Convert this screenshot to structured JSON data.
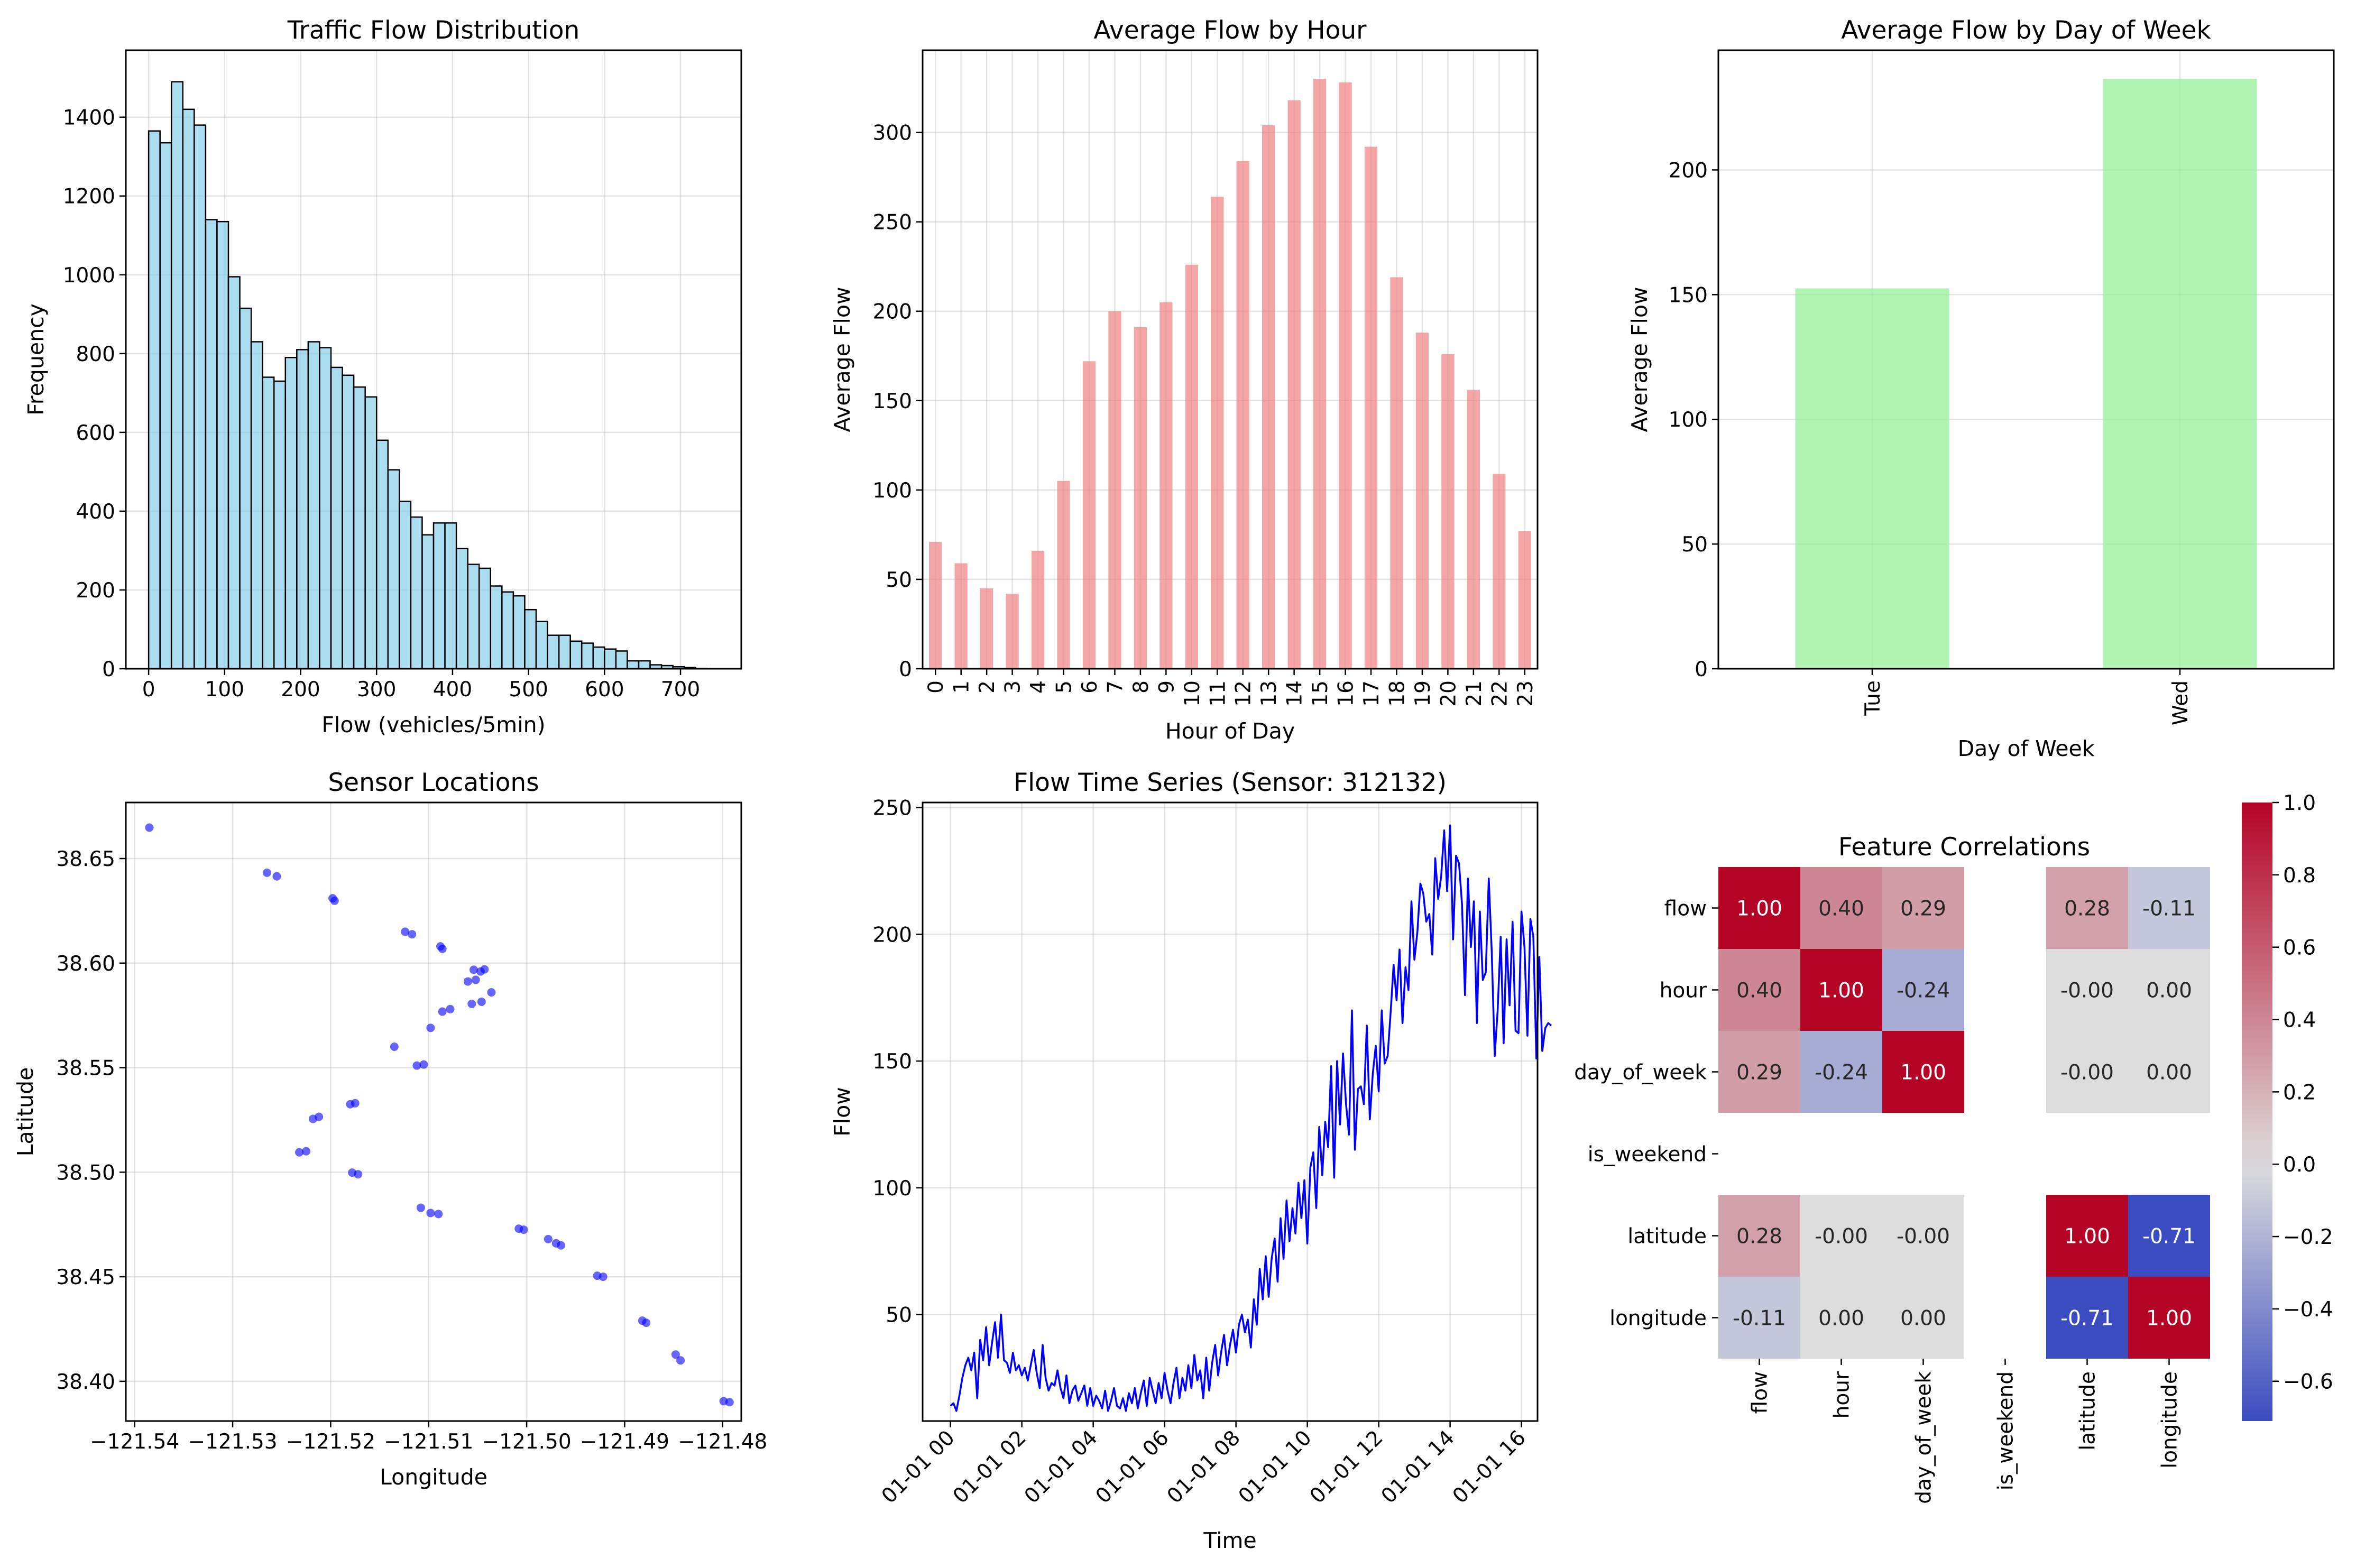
{
  "colors": {
    "hist_fill": "#87ceeb",
    "hist_edge": "#000000",
    "hour_bar": "#f08080",
    "dow_bar": "#90ee90",
    "scatter": "#0000ff",
    "line": "#0000ff",
    "cmap": "coolwarm"
  },
  "chart_data": [
    {
      "type": "bar",
      "subtype": "histogram",
      "title": "Traffic Flow Distribution",
      "xlabel": "Flow (vehicles/5min)",
      "ylabel": "Frequency",
      "xlim": [
        -30,
        780
      ],
      "ylim": [
        0,
        1570
      ],
      "grid": true,
      "xticks": [
        0,
        100,
        200,
        300,
        400,
        500,
        600,
        700
      ],
      "yticks": [
        0,
        200,
        400,
        600,
        800,
        1000,
        1200,
        1400
      ],
      "bin_start": 0,
      "bin_width": 15,
      "values": [
        1365,
        1335,
        1490,
        1420,
        1380,
        1140,
        1135,
        995,
        915,
        830,
        740,
        730,
        790,
        810,
        830,
        815,
        765,
        745,
        715,
        690,
        580,
        505,
        425,
        385,
        340,
        370,
        370,
        305,
        265,
        255,
        210,
        195,
        185,
        150,
        120,
        85,
        85,
        70,
        65,
        55,
        50,
        45,
        20,
        20,
        10,
        8,
        5,
        3,
        1
      ]
    },
    {
      "type": "bar",
      "title": "Average Flow by Hour",
      "xlabel": "Hour of Day",
      "ylabel": "Average Flow",
      "ylim": [
        0,
        346
      ],
      "grid": true,
      "yticks": [
        0,
        50,
        100,
        150,
        200,
        250,
        300
      ],
      "categories": [
        "0",
        "1",
        "2",
        "3",
        "4",
        "5",
        "6",
        "7",
        "8",
        "9",
        "10",
        "11",
        "12",
        "13",
        "14",
        "15",
        "16",
        "17",
        "18",
        "19",
        "20",
        "21",
        "22",
        "23"
      ],
      "values": [
        71,
        59,
        45,
        42,
        66,
        105,
        172,
        200,
        191,
        205,
        226,
        264,
        284,
        304,
        318,
        330,
        328,
        292,
        219,
        188,
        176,
        156,
        109,
        77
      ]
    },
    {
      "type": "bar",
      "title": "Average Flow by Day of Week",
      "xlabel": "Day of Week",
      "ylabel": "Average Flow",
      "ylim": [
        0,
        248
      ],
      "grid": true,
      "yticks": [
        0,
        50,
        100,
        150,
        200
      ],
      "categories": [
        "Tue",
        "Wed"
      ],
      "values": [
        152.5,
        236.5
      ]
    },
    {
      "type": "scatter",
      "title": "Sensor Locations",
      "xlabel": "Longitude",
      "ylabel": "Latitude",
      "xlim": [
        -121.5409,
        -121.4781
      ],
      "ylim": [
        38.381,
        38.6768
      ],
      "grid": true,
      "xticks": [
        -121.54,
        -121.53,
        -121.52,
        -121.51,
        -121.5,
        -121.49,
        -121.48
      ],
      "xtick_labels": [
        "−121.54",
        "−121.53",
        "−121.52",
        "−121.51",
        "−121.50",
        "−121.49",
        "−121.48"
      ],
      "yticks": [
        38.4,
        38.45,
        38.5,
        38.55,
        38.6,
        38.65
      ],
      "ytick_labels": [
        "38.40",
        "38.45",
        "38.50",
        "38.55",
        "38.60",
        "38.65"
      ],
      "points": [
        [
          -121.5385,
          38.6648
        ],
        [
          -121.5265,
          38.6432
        ],
        [
          -121.5255,
          38.6415
        ],
        [
          -121.5198,
          38.631
        ],
        [
          -121.5196,
          38.6298
        ],
        [
          -121.5124,
          38.615
        ],
        [
          -121.5117,
          38.6138
        ],
        [
          -121.5088,
          38.608
        ],
        [
          -121.5086,
          38.6068
        ],
        [
          -121.5054,
          38.5968
        ],
        [
          -121.5047,
          38.596
        ],
        [
          -121.5043,
          38.597
        ],
        [
          -121.5052,
          38.592
        ],
        [
          -121.506,
          38.5912
        ],
        [
          -121.5036,
          38.586
        ],
        [
          -121.5046,
          38.5815
        ],
        [
          -121.5056,
          38.5805
        ],
        [
          -121.5078,
          38.578
        ],
        [
          -121.5086,
          38.5768
        ],
        [
          -121.5098,
          38.569
        ],
        [
          -121.5135,
          38.56
        ],
        [
          -121.5105,
          38.5515
        ],
        [
          -121.5112,
          38.551
        ],
        [
          -121.5175,
          38.533
        ],
        [
          -121.518,
          38.5325
        ],
        [
          -121.5212,
          38.5265
        ],
        [
          -121.5218,
          38.5255
        ],
        [
          -121.5225,
          38.51
        ],
        [
          -121.5232,
          38.5095
        ],
        [
          -121.5178,
          38.4998
        ],
        [
          -121.5172,
          38.499
        ],
        [
          -121.5108,
          38.483
        ],
        [
          -121.5098,
          38.4805
        ],
        [
          -121.509,
          38.48
        ],
        [
          -121.5008,
          38.473
        ],
        [
          -121.5003,
          38.4725
        ],
        [
          -121.4978,
          38.468
        ],
        [
          -121.497,
          38.466
        ],
        [
          -121.4965,
          38.465
        ],
        [
          -121.4928,
          38.4505
        ],
        [
          -121.4922,
          38.45
        ],
        [
          -121.4882,
          38.429
        ],
        [
          -121.4878,
          38.428
        ],
        [
          -121.4848,
          38.4128
        ],
        [
          -121.4843,
          38.41
        ],
        [
          -121.4799,
          38.3905
        ],
        [
          -121.4793,
          38.39
        ]
      ]
    },
    {
      "type": "line",
      "title": "Flow Time Series (Sensor: 312132)",
      "xlabel": "Time",
      "ylabel": "Flow",
      "x_start": "01-01 00:00",
      "x_step_minutes": 5,
      "xlim_hours": [
        -0.78,
        16.45
      ],
      "ylim": [
        8,
        252
      ],
      "grid": true,
      "xtick_labels": [
        "01-01 00",
        "01-01 02",
        "01-01 04",
        "01-01 06",
        "01-01 08",
        "01-01 10",
        "01-01 12",
        "01-01 14",
        "01-01 16"
      ],
      "yticks": [
        50,
        100,
        150,
        200,
        250
      ],
      "values": [
        14,
        15,
        12,
        18,
        25,
        30,
        33,
        28,
        35,
        17,
        40,
        32,
        45,
        30,
        39,
        47,
        33,
        50,
        32,
        31,
        27,
        35,
        28,
        30,
        26,
        29,
        24,
        30,
        36,
        27,
        21,
        38,
        25,
        20,
        23,
        22,
        28,
        21,
        17,
        26,
        15,
        20,
        22,
        16,
        19,
        22,
        14,
        21,
        14,
        18,
        16,
        13,
        20,
        12,
        16,
        21,
        14,
        13,
        17,
        12,
        19,
        15,
        21,
        13,
        19,
        24,
        14,
        25,
        20,
        15,
        23,
        17,
        27,
        20,
        15,
        23,
        29,
        17,
        25,
        20,
        30,
        21,
        34,
        24,
        28,
        17,
        33,
        20,
        31,
        38,
        26,
        35,
        42,
        30,
        38,
        44,
        35,
        46,
        50,
        43,
        48,
        37,
        56,
        46,
        68,
        56,
        73,
        57,
        72,
        80,
        63,
        88,
        72,
        95,
        79,
        92,
        82,
        102,
        88,
        103,
        78,
        108,
        114,
        92,
        124,
        105,
        126,
        116,
        148,
        104,
        150,
        125,
        153,
        133,
        121,
        170,
        115,
        139,
        140,
        133,
        164,
        127,
        145,
        156,
        138,
        170,
        149,
        152,
        169,
        188,
        174,
        194,
        165,
        187,
        178,
        213,
        190,
        201,
        220,
        216,
        205,
        208,
        192,
        230,
        214,
        223,
        241,
        217,
        243,
        198,
        231,
        228,
        212,
        176,
        222,
        195,
        213,
        165,
        209,
        182,
        185,
        222,
        193,
        152,
        170,
        199,
        157,
        198,
        172,
        205,
        162,
        161,
        209,
        195,
        160,
        206,
        199,
        151,
        191,
        154,
        163,
        165,
        164
      ],
      "extra_xtick_labels": []
    },
    {
      "type": "heatmap",
      "title": "Feature Correlations",
      "labels": [
        "flow",
        "hour",
        "day_of_week",
        "is_weekend",
        "latitude",
        "longitude"
      ],
      "vmin": -0.71,
      "vmax": 1.0,
      "matrix": [
        [
          1.0,
          0.4,
          0.29,
          null,
          0.28,
          -0.11
        ],
        [
          0.4,
          1.0,
          -0.24,
          null,
          -0.002,
          0.002
        ],
        [
          0.29,
          -0.24,
          1.0,
          null,
          -0.002,
          0.002
        ],
        [
          null,
          null,
          null,
          null,
          null,
          null
        ],
        [
          0.28,
          -0.002,
          -0.002,
          null,
          1.0,
          -0.71
        ],
        [
          -0.11,
          0.002,
          0.002,
          null,
          -0.71,
          1.0
        ]
      ],
      "annotations": [
        [
          "1.00",
          "0.40",
          "0.29",
          "",
          "0.28",
          "-0.11"
        ],
        [
          "0.40",
          "1.00",
          "-0.24",
          "",
          "-0.00",
          "0.00"
        ],
        [
          "0.29",
          "-0.24",
          "1.00",
          "",
          "-0.00",
          "0.00"
        ],
        [
          "",
          "",
          "",
          "",
          "",
          ""
        ],
        [
          "0.28",
          "-0.00",
          "-0.00",
          "",
          "1.00",
          "-0.71"
        ],
        [
          "-0.11",
          "0.00",
          "0.00",
          "",
          "-0.71",
          "1.00"
        ]
      ],
      "colorbar_ticks": [
        -0.6,
        -0.4,
        -0.2,
        0.0,
        0.2,
        0.4,
        0.6,
        0.8,
        1.0
      ],
      "colorbar_tick_labels": [
        "−0.6",
        "−0.4",
        "−0.2",
        "0.0",
        "0.2",
        "0.4",
        "0.6",
        "0.8",
        "1.0"
      ]
    }
  ]
}
